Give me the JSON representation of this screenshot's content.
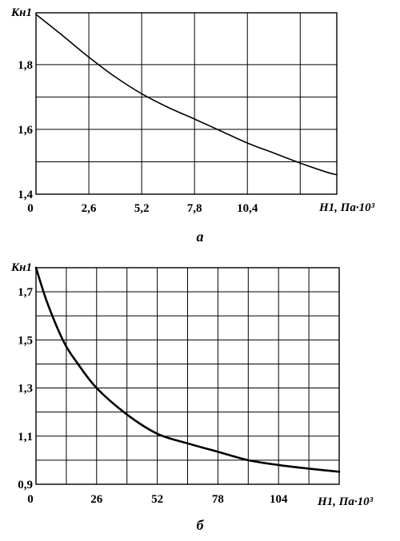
{
  "chart_data": [
    {
      "type": "line",
      "caption": "а",
      "ylabel": "Кн1",
      "xlabel": "Н1, Па·10³",
      "xlim": [
        0,
        14.8
      ],
      "ylim": [
        1.4,
        1.96
      ],
      "x_ticks": [
        {
          "value": 0,
          "label": "0"
        },
        {
          "value": 2.6,
          "label": "2,6"
        },
        {
          "value": 5.2,
          "label": "5,2"
        },
        {
          "value": 7.8,
          "label": "7,8"
        },
        {
          "value": 10.4,
          "label": "10,4"
        }
      ],
      "y_ticks": [
        {
          "value": 1.4,
          "label": "1,4"
        },
        {
          "value": 1.6,
          "label": "1,6"
        },
        {
          "value": 1.8,
          "label": "1,8"
        }
      ],
      "x_grid": [
        2.6,
        5.2,
        7.8,
        10.4,
        13.0
      ],
      "y_grid": [
        1.5,
        1.6,
        1.7,
        1.8
      ],
      "grid": true,
      "series": [
        {
          "x": [
            0,
            1.3,
            2.6,
            3.9,
            5.2,
            6.5,
            7.8,
            9.1,
            10.4,
            11.7,
            13.0,
            14.3,
            14.8
          ],
          "y": [
            1.955,
            1.89,
            1.823,
            1.762,
            1.71,
            1.668,
            1.632,
            1.595,
            1.558,
            1.527,
            1.496,
            1.468,
            1.46
          ]
        }
      ]
    },
    {
      "type": "line",
      "caption": "б",
      "ylabel": "Кн1",
      "xlabel": "Н1, Па·10³",
      "xlim": [
        0,
        130
      ],
      "ylim": [
        0.9,
        1.8
      ],
      "x_ticks": [
        {
          "value": 0,
          "label": "0"
        },
        {
          "value": 26,
          "label": "26"
        },
        {
          "value": 52,
          "label": "52"
        },
        {
          "value": 78,
          "label": "78"
        },
        {
          "value": 104,
          "label": "104"
        }
      ],
      "y_ticks": [
        {
          "value": 0.9,
          "label": "0,9"
        },
        {
          "value": 1.1,
          "label": "1,1"
        },
        {
          "value": 1.3,
          "label": "1,3"
        },
        {
          "value": 1.5,
          "label": "1,5"
        },
        {
          "value": 1.7,
          "label": "1,7"
        }
      ],
      "x_grid": [
        13,
        26,
        39,
        52,
        65,
        78,
        91,
        104,
        117
      ],
      "y_grid": [
        1.0,
        1.1,
        1.2,
        1.3,
        1.4,
        1.5,
        1.6,
        1.7
      ],
      "grid": true,
      "series": [
        {
          "x": [
            0,
            5,
            12,
            18,
            26,
            39,
            52,
            65,
            78,
            91,
            104,
            117,
            130
          ],
          "y": [
            1.8,
            1.65,
            1.49,
            1.4,
            1.3,
            1.19,
            1.11,
            1.07,
            1.035,
            1.0,
            0.98,
            0.965,
            0.952
          ]
        }
      ]
    }
  ]
}
